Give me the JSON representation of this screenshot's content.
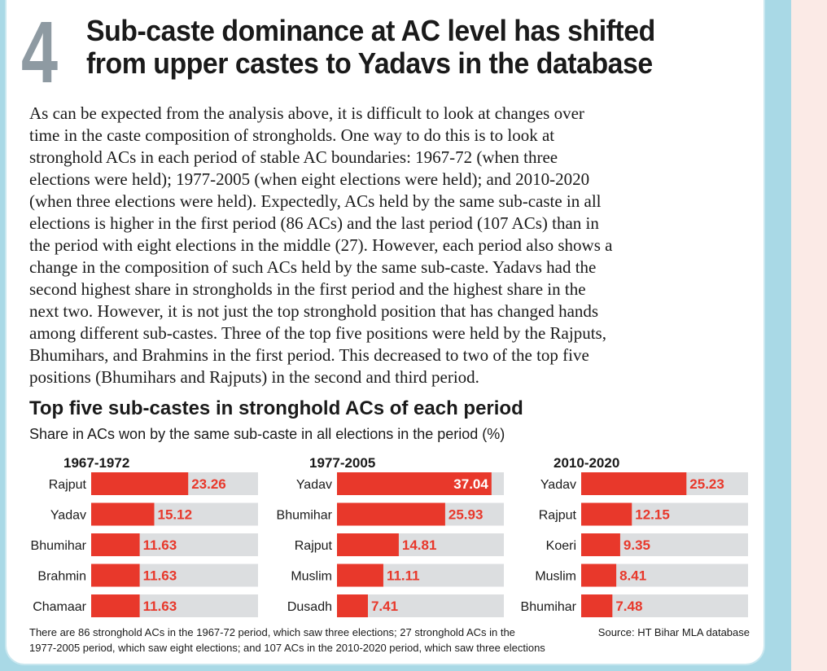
{
  "badge_number": "4",
  "headline": {
    "line1": "Sub-caste dominance at AC level has shifted",
    "line2": "from upper castes to Yadavs in the database"
  },
  "body_lines": [
    "As can be expected from the analysis above, it is difficult to look at changes over",
    "time in the caste composition of strongholds. One way to do this is to look at",
    "stronghold ACs in each period of stable AC boundaries: 1967-72 (when three",
    "elections were held); 1977-2005 (when eight elections were held); and 2010-2020",
    "(when three elections were held). Expectedly, ACs held by the same sub-caste in all",
    "elections is higher in the first period (86 ACs) and the last period (107 ACs) than in",
    "the period with eight elections in the middle (27). However, each period also shows a",
    "change in the composition of such ACs held by the same sub-caste. Yadavs had the",
    "second highest share in strongholds in the first period and the highest share in the",
    "next two. However, it is not just the top stronghold position that has changed hands",
    "among different sub-castes. Three of the top five positions were held by the Rajputs,",
    "Bhumihars, and Brahmins in the first period. This decreased to two of the top five",
    "positions (Bhumihars and Rajputs) in the second and third period."
  ],
  "chart_heading": "Top five sub-castes in stronghold ACs of each period",
  "chart_subheading": "Share in ACs won by the same sub-caste in all elections in the period (%)",
  "colors": {
    "bar": "#e8382b",
    "track": "#dcdee0",
    "accent_text": "#ffffff"
  },
  "chart_data": [
    {
      "type": "bar",
      "title": "1967-1972",
      "categories": [
        "Rajput",
        "Yadav",
        "Bhumihar",
        "Brahmin",
        "Chamaar"
      ],
      "values": [
        23.26,
        15.12,
        11.63,
        11.63,
        11.63
      ],
      "value_labels": [
        "23.26",
        "15.12",
        "11.63",
        "11.63",
        "11.63"
      ],
      "xlim": [
        0,
        40
      ]
    },
    {
      "type": "bar",
      "title": "1977-2005",
      "categories": [
        "Yadav",
        "Bhumihar",
        "Rajput",
        "Muslim",
        "Dusadh"
      ],
      "values": [
        37.04,
        25.93,
        14.81,
        11.11,
        7.41
      ],
      "value_labels": [
        "37.04",
        "25.93",
        "14.81",
        "11.11",
        "7.41"
      ],
      "xlim": [
        0,
        40
      ]
    },
    {
      "type": "bar",
      "title": "2010-2020",
      "categories": [
        "Yadav",
        "Rajput",
        "Koeri",
        "Muslim",
        "Bhumihar"
      ],
      "values": [
        25.23,
        12.15,
        9.35,
        8.41,
        7.48
      ],
      "value_labels": [
        "25.23",
        "12.15",
        "9.35",
        "8.41",
        "7.48"
      ],
      "xlim": [
        0,
        40
      ]
    }
  ],
  "footnote": {
    "line1": "There are 86 stronghold ACs in the 1967-72 period, which saw three elections; 27 stronghold ACs in the",
    "line2": "1977-2005 period, which saw eight elections; and 107 ACs in the 2010-2020 period, which saw three elections"
  },
  "source": "Source: HT Bihar MLA database"
}
